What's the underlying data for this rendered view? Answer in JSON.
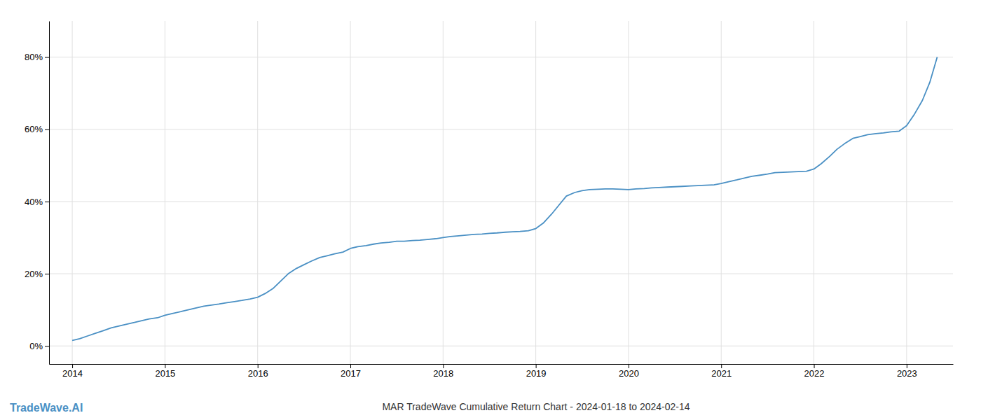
{
  "chart_data": {
    "type": "line",
    "title": "MAR TradeWave Cumulative Return Chart - 2024-01-18 to 2024-02-14",
    "annotations": [
      "TradeWave.AI"
    ],
    "color": "#4a90c4",
    "grid": true,
    "x": [
      2014.0,
      2014.08,
      2014.17,
      2014.25,
      2014.33,
      2014.42,
      2014.5,
      2014.58,
      2014.67,
      2014.75,
      2014.83,
      2014.92,
      2015.0,
      2015.08,
      2015.17,
      2015.25,
      2015.33,
      2015.42,
      2015.5,
      2015.58,
      2015.67,
      2015.75,
      2015.83,
      2015.92,
      2016.0,
      2016.08,
      2016.17,
      2016.25,
      2016.33,
      2016.42,
      2016.5,
      2016.58,
      2016.67,
      2016.75,
      2016.83,
      2016.92,
      2017.0,
      2017.08,
      2017.17,
      2017.25,
      2017.33,
      2017.42,
      2017.5,
      2017.58,
      2017.67,
      2017.75,
      2017.83,
      2017.92,
      2018.0,
      2018.08,
      2018.17,
      2018.25,
      2018.33,
      2018.42,
      2018.5,
      2018.58,
      2018.67,
      2018.75,
      2018.83,
      2018.92,
      2019.0,
      2019.08,
      2019.17,
      2019.25,
      2019.33,
      2019.42,
      2019.5,
      2019.58,
      2019.67,
      2019.75,
      2019.83,
      2019.92,
      2020.0,
      2020.08,
      2020.17,
      2020.25,
      2020.33,
      2020.42,
      2020.5,
      2020.58,
      2020.67,
      2020.75,
      2020.83,
      2020.92,
      2021.0,
      2021.08,
      2021.17,
      2021.25,
      2021.33,
      2021.42,
      2021.5,
      2021.58,
      2021.67,
      2021.75,
      2021.83,
      2021.92,
      2022.0,
      2022.08,
      2022.17,
      2022.25,
      2022.33,
      2022.42,
      2022.5,
      2022.58,
      2022.67,
      2022.75,
      2022.83,
      2022.92,
      2023.0,
      2023.08,
      2023.17,
      2023.25,
      2023.33
    ],
    "values": [
      1.5,
      2.0,
      2.8,
      3.5,
      4.2,
      5.0,
      5.5,
      6.0,
      6.5,
      7.0,
      7.5,
      7.8,
      8.5,
      9.0,
      9.5,
      10.0,
      10.5,
      11.0,
      11.3,
      11.6,
      12.0,
      12.3,
      12.6,
      13.0,
      13.5,
      14.5,
      16.0,
      18.0,
      20.0,
      21.5,
      22.5,
      23.5,
      24.5,
      25.0,
      25.5,
      26.0,
      27.0,
      27.5,
      27.8,
      28.2,
      28.5,
      28.7,
      29.0,
      29.0,
      29.2,
      29.3,
      29.5,
      29.7,
      30.0,
      30.3,
      30.5,
      30.7,
      30.9,
      31.0,
      31.2,
      31.3,
      31.5,
      31.6,
      31.7,
      31.9,
      32.5,
      34.0,
      36.5,
      39.0,
      41.5,
      42.5,
      43.0,
      43.3,
      43.4,
      43.5,
      43.5,
      43.4,
      43.3,
      43.5,
      43.6,
      43.8,
      43.9,
      44.0,
      44.1,
      44.2,
      44.3,
      44.4,
      44.5,
      44.6,
      45.0,
      45.5,
      46.0,
      46.5,
      47.0,
      47.3,
      47.6,
      48.0,
      48.1,
      48.2,
      48.3,
      48.4,
      49.0,
      50.5,
      52.5,
      54.5,
      56.0,
      57.5,
      58.0,
      58.5,
      58.8,
      59.0,
      59.3,
      59.5,
      61.0,
      64.0,
      68.0,
      73.0,
      80.0
    ],
    "xlim": [
      2013.75,
      2023.5
    ],
    "ylim": [
      -5,
      90
    ],
    "xticks": [
      2014,
      2015,
      2016,
      2017,
      2018,
      2019,
      2020,
      2021,
      2022,
      2023
    ],
    "yticks": [
      {
        "value": 0,
        "label": "0%"
      },
      {
        "value": 20,
        "label": "20%"
      },
      {
        "value": 40,
        "label": "40%"
      },
      {
        "value": 60,
        "label": "60%"
      },
      {
        "value": 80,
        "label": "80%"
      }
    ]
  }
}
